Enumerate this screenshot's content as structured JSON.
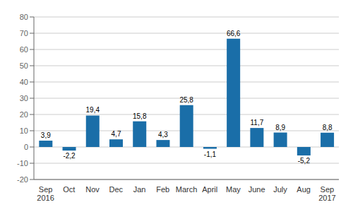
{
  "chart_data": {
    "type": "bar",
    "categories": [
      "Sep\n2016",
      "Oct",
      "Nov",
      "Dec",
      "Jan",
      "Feb",
      "March",
      "April",
      "May",
      "June",
      "July",
      "Aug",
      "Sep\n2017"
    ],
    "values": [
      3.9,
      -2.2,
      19.4,
      4.7,
      15.8,
      4.3,
      25.8,
      -1.1,
      66.6,
      11.7,
      8.9,
      -5.2,
      8.8
    ],
    "value_labels": [
      "3,9",
      "-2,2",
      "19,4",
      "4,7",
      "15,8",
      "4,3",
      "25,8",
      "-1,1",
      "66,6",
      "11,7",
      "8,9",
      "-5,2",
      "8,8"
    ],
    "color": "#1a6ea8",
    "ylim": [
      -20,
      80
    ],
    "yticks": [
      -20,
      -10,
      0,
      10,
      20,
      30,
      40,
      50,
      60,
      70,
      80
    ],
    "grid": true,
    "data_labels": true
  }
}
